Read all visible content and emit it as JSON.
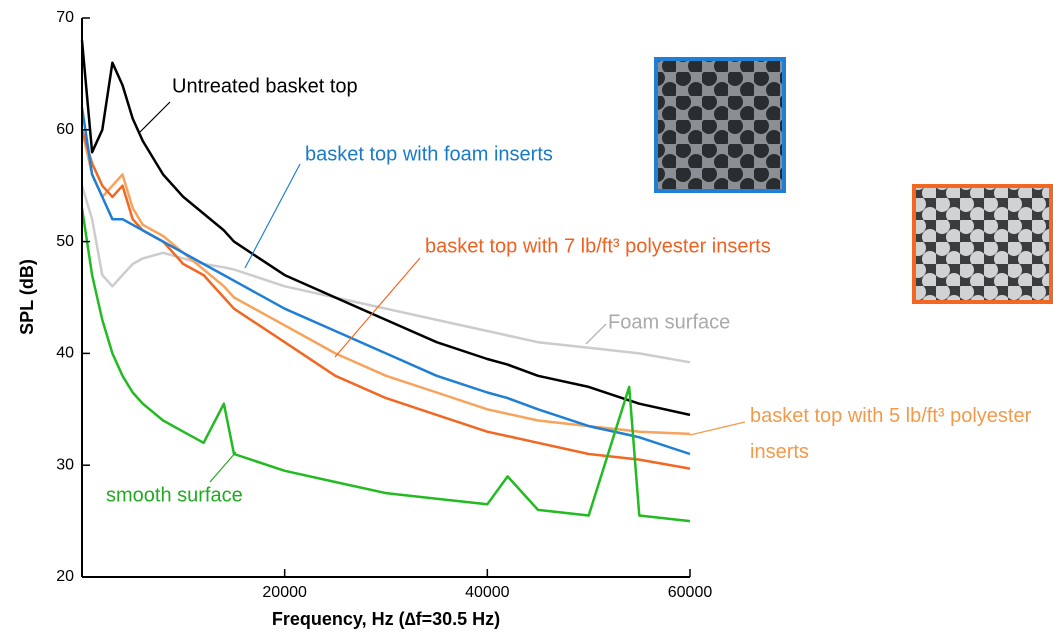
{
  "chart_data": {
    "type": "line",
    "xlabel": "Frequency, Hz  (∆f=30.5 Hz)",
    "ylabel": "SPL (dB)",
    "x": [
      0,
      1000,
      2000,
      3000,
      4000,
      5000,
      6000,
      8000,
      10000,
      12000,
      14000,
      15000,
      20000,
      25000,
      30000,
      35000,
      40000,
      42000,
      45000,
      50000,
      54000,
      55000,
      60000
    ],
    "xlim": [
      0,
      60000
    ],
    "ylim": [
      20,
      70
    ],
    "xticks": [
      20000,
      40000,
      60000
    ],
    "yticks": [
      20,
      30,
      40,
      50,
      60,
      70
    ],
    "series": [
      {
        "name": "Untreated basket top",
        "color": "#000000",
        "values": [
          68,
          58,
          60,
          66,
          64,
          61,
          59,
          56,
          54,
          52.5,
          51,
          50,
          47,
          45,
          43,
          41,
          39.5,
          39,
          38,
          37,
          35.8,
          35.5,
          34.5
        ]
      },
      {
        "name": "basket top with foam inserts",
        "color": "#1f7fd4",
        "values": [
          62,
          56,
          54,
          52,
          52,
          51.5,
          51,
          50,
          49,
          48,
          47,
          46.5,
          44,
          42,
          40,
          38,
          36.5,
          36,
          35,
          33.5,
          32.7,
          32.5,
          31
        ]
      },
      {
        "name": "basket top with 7 lb/ft³ polyester inserts",
        "color": "#f26722",
        "values": [
          60,
          57,
          55,
          54,
          55,
          52,
          51,
          50,
          48,
          47,
          45,
          44,
          41,
          38,
          36,
          34.5,
          33,
          32.6,
          32,
          31,
          30.6,
          30.5,
          29.7
        ]
      },
      {
        "name": "basket top with 5 lb/ft³ polyester inserts",
        "color": "#f7a35c",
        "values": [
          60,
          56,
          54,
          55,
          56,
          53,
          51.5,
          50.5,
          49,
          47.5,
          46,
          45,
          42.5,
          40,
          38,
          36.5,
          35,
          34.6,
          34,
          33.5,
          33.1,
          33,
          32.8
        ]
      },
      {
        "name": "Foam surface",
        "color": "#cccccc",
        "values": [
          55,
          52,
          47,
          46,
          47,
          48,
          48.5,
          49,
          48.5,
          48,
          47.7,
          47.5,
          46,
          45,
          44,
          43,
          42,
          41.6,
          41,
          40.5,
          40.1,
          40,
          39.2
        ]
      },
      {
        "name": "smooth surface",
        "color": "#22bb22",
        "values": [
          53,
          47,
          43,
          40,
          38,
          36.5,
          35.5,
          34,
          33,
          32,
          35.5,
          31,
          29.5,
          28.5,
          27.5,
          27,
          26.5,
          29,
          26,
          25.5,
          37,
          25.5,
          25
        ]
      }
    ]
  }
}
